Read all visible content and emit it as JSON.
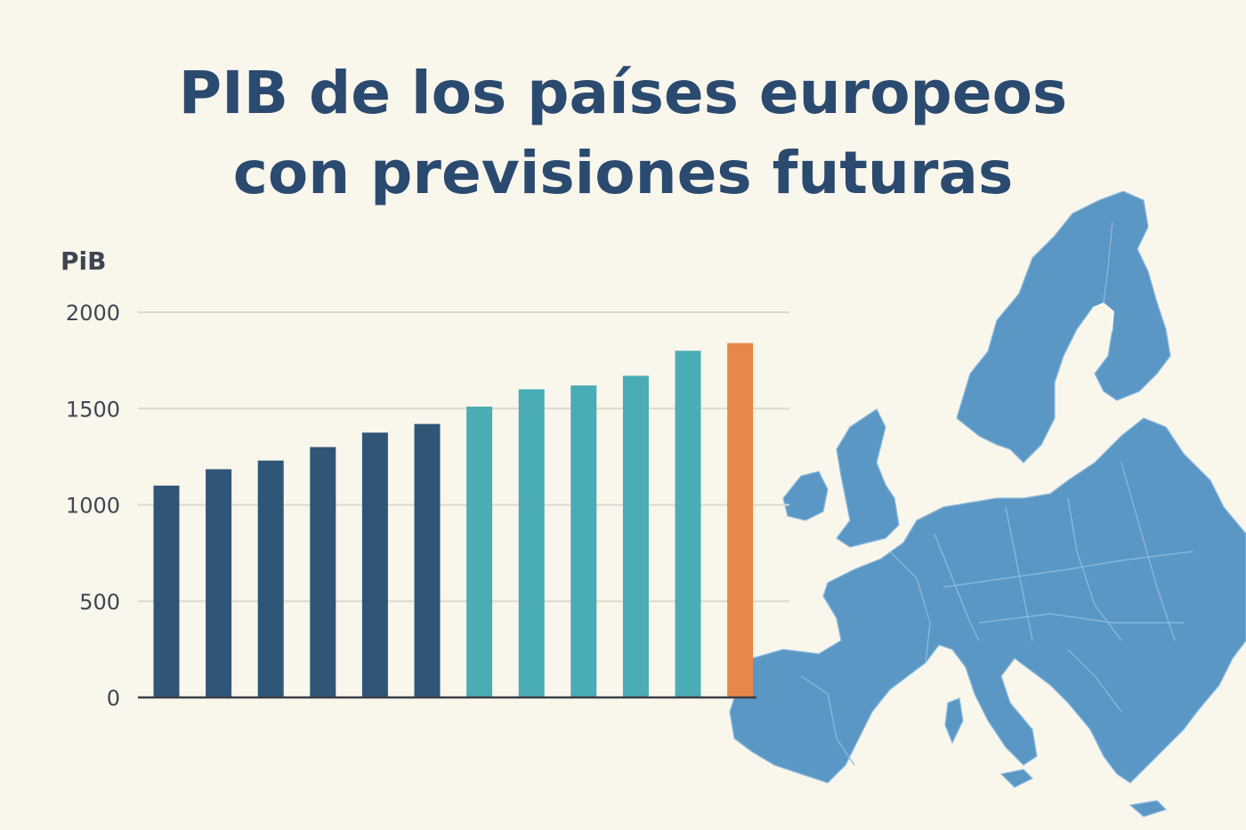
{
  "title_lines": [
    "PIB de los países europeos",
    "con previsiones futuras"
  ],
  "chart_data": {
    "type": "bar",
    "title": "PIB de los países europeos con previsiones futuras",
    "ylabel": "PiB",
    "xlabel": "",
    "ylim": [
      0,
      2000
    ],
    "yticks": [
      0,
      500,
      1000,
      1500,
      2000
    ],
    "grid": true,
    "values": [
      1100,
      1185,
      1230,
      1300,
      1375,
      1420,
      1510,
      1600,
      1620,
      1670,
      1800,
      1840
    ],
    "colors": [
      "#2f5676",
      "#2f5676",
      "#2f5676",
      "#2f5676",
      "#2f5676",
      "#2f5676",
      "#4aacb4",
      "#4aacb4",
      "#4aacb4",
      "#4aacb4",
      "#4aacb4",
      "#e8874a"
    ]
  },
  "colors": {
    "background": "#f9f6ec",
    "title": "#2b4a6f",
    "map": "#5b97c4",
    "grid": "#dcd9cf",
    "axis": "#3a3f48"
  },
  "map_icon": "europe-map"
}
